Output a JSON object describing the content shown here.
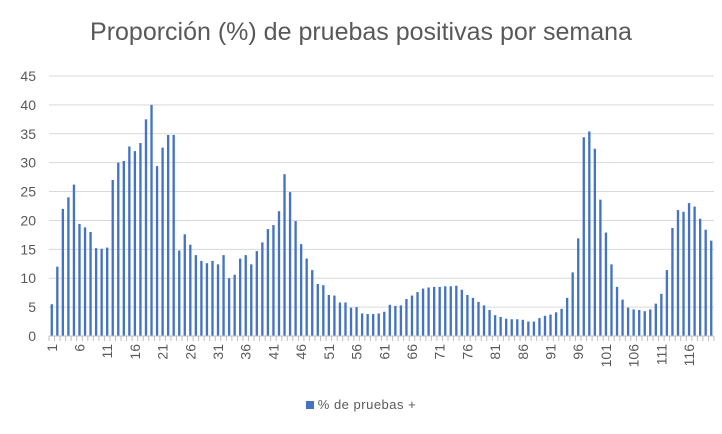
{
  "chart_data": {
    "type": "bar",
    "title": "Proporción (%) de pruebas positivas por semana",
    "xlabel": "",
    "ylabel": "",
    "ylim": [
      0,
      45
    ],
    "yticks": [
      0,
      5,
      10,
      15,
      20,
      25,
      30,
      35,
      40,
      45
    ],
    "grid": true,
    "legend_position": "bottom",
    "color": "#4472C4",
    "x_tick_labels": [
      "1",
      "6",
      "11",
      "16",
      "21",
      "26",
      "31",
      "36",
      "41",
      "46",
      "51",
      "56",
      "61",
      "66",
      "71",
      "76",
      "81",
      "86",
      "91",
      "96",
      "101",
      "106",
      "111",
      "116"
    ],
    "series": [
      {
        "name": "% de pruebas +",
        "x": [
          1,
          2,
          3,
          4,
          5,
          6,
          7,
          8,
          9,
          10,
          11,
          12,
          13,
          14,
          15,
          16,
          17,
          18,
          19,
          20,
          21,
          22,
          23,
          24,
          25,
          26,
          27,
          28,
          29,
          30,
          31,
          32,
          33,
          34,
          35,
          36,
          37,
          38,
          39,
          40,
          41,
          42,
          43,
          44,
          45,
          46,
          47,
          48,
          49,
          50,
          51,
          52,
          53,
          54,
          55,
          56,
          57,
          58,
          59,
          60,
          61,
          62,
          63,
          64,
          65,
          66,
          67,
          68,
          69,
          70,
          71,
          72,
          73,
          74,
          75,
          76,
          77,
          78,
          79,
          80,
          81,
          82,
          83,
          84,
          85,
          86,
          87,
          88,
          89,
          90,
          91,
          92,
          93,
          94,
          95,
          96,
          97,
          98,
          99,
          100,
          101,
          102,
          103,
          104,
          105,
          106,
          107,
          108,
          109,
          110,
          111,
          112,
          113,
          114,
          115,
          116,
          117,
          118,
          119,
          120
        ],
        "values": [
          5.5,
          12,
          22,
          24,
          26.2,
          19.4,
          18.8,
          18,
          15.2,
          15.1,
          15.3,
          27,
          30,
          30.3,
          32.8,
          32,
          33.4,
          37.5,
          40,
          29.4,
          32.6,
          34.8,
          34.8,
          14.8,
          17.6,
          15.8,
          14,
          13,
          12.6,
          13,
          12.4,
          14,
          10,
          10.6,
          13.4,
          14,
          12.4,
          14.7,
          16.2,
          18.5,
          19.2,
          21.6,
          28,
          24.9,
          19.9,
          15.9,
          13.4,
          11.4,
          9,
          8.8,
          7.1,
          7,
          5.8,
          5.8,
          4.9,
          5,
          3.9,
          3.8,
          3.8,
          3.9,
          4.2,
          5.4,
          5.2,
          5.3,
          6.4,
          7,
          7.6,
          8.2,
          8.4,
          8.5,
          8.5,
          8.6,
          8.6,
          8.7,
          8,
          7.1,
          6.6,
          5.9,
          5.3,
          4.5,
          3.6,
          3.3,
          3,
          2.9,
          2.9,
          2.8,
          2.5,
          2.5,
          3.1,
          3.5,
          3.7,
          4.1,
          4.7,
          6.6,
          11,
          16.9,
          34.4,
          35.4,
          32.4,
          23.6,
          17.9,
          12.4,
          8.5,
          6.3,
          4.9,
          4.6,
          4.5,
          4.3,
          4.6,
          5.6,
          7.3,
          11.4,
          18.7,
          21.8,
          21.5,
          23,
          22.4,
          20.3,
          18.4,
          16.5
        ]
      }
    ]
  }
}
